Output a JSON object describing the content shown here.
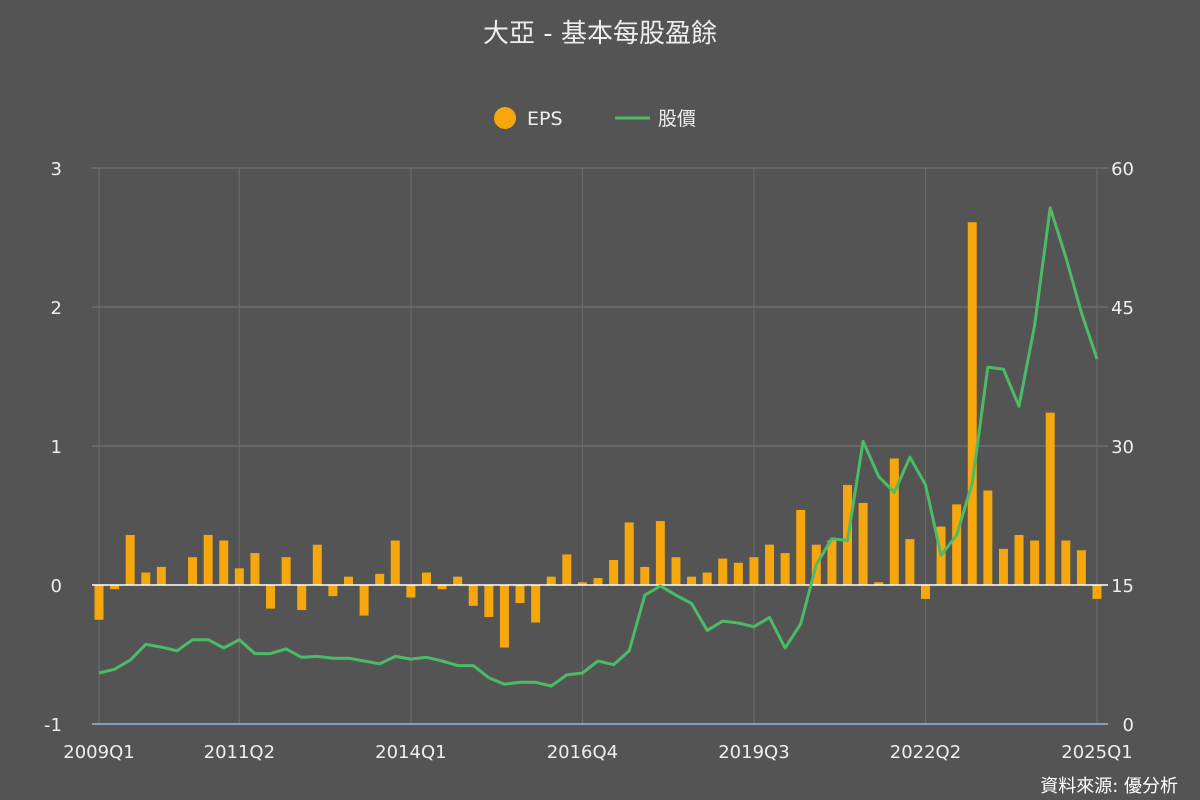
{
  "chart_data": {
    "type": "bar",
    "title": "大亞 - 基本每股盈餘",
    "legend": {
      "placement": "top-center",
      "items": [
        "EPS",
        "股價"
      ]
    },
    "colors": {
      "eps": "#f5a70d",
      "price": "#4cbb66",
      "zero_line": "#ffffff",
      "axis_bottom": "#9ab4d8"
    },
    "x_tick_labels": [
      "2009Q1",
      "2011Q2",
      "2014Q1",
      "2016Q4",
      "2019Q3",
      "2022Q2",
      "2025Q1"
    ],
    "y_left": {
      "min": -1,
      "max": 3,
      "ticks": [
        "-1",
        "0",
        "1",
        "2",
        "3"
      ]
    },
    "y_right": {
      "min": 0,
      "max": 60,
      "ticks": [
        "0",
        "15",
        "30",
        "45",
        "60"
      ]
    },
    "categories": [
      "2009Q1",
      "2009Q2",
      "2009Q3",
      "2009Q4",
      "2010Q1",
      "2010Q2",
      "2010Q3",
      "2010Q4",
      "2011Q1",
      "2011Q2",
      "2011Q3",
      "2011Q4",
      "2012Q1",
      "2012Q2",
      "2012Q3",
      "2012Q4",
      "2013Q1",
      "2013Q2",
      "2013Q3",
      "2013Q4",
      "2014Q1",
      "2014Q2",
      "2014Q3",
      "2014Q4",
      "2015Q1",
      "2015Q2",
      "2015Q3",
      "2015Q4",
      "2016Q1",
      "2016Q2",
      "2016Q3",
      "2016Q4",
      "2017Q1",
      "2017Q2",
      "2017Q3",
      "2017Q4",
      "2018Q1",
      "2018Q2",
      "2018Q3",
      "2018Q4",
      "2019Q1",
      "2019Q2",
      "2019Q3",
      "2019Q4",
      "2020Q1",
      "2020Q2",
      "2020Q3",
      "2020Q4",
      "2021Q1",
      "2021Q2",
      "2021Q3",
      "2021Q4",
      "2022Q1",
      "2022Q2",
      "2022Q3",
      "2022Q4",
      "2023Q1",
      "2023Q2",
      "2023Q3",
      "2023Q4",
      "2024Q1",
      "2024Q2",
      "2024Q3",
      "2024Q4",
      "2025Q1"
    ],
    "series": [
      {
        "name": "EPS",
        "type": "bar",
        "axis": "left",
        "values": [
          -0.25,
          -0.03,
          0.36,
          0.09,
          0.13,
          0.0,
          0.2,
          0.36,
          0.32,
          0.12,
          0.23,
          -0.17,
          0.2,
          -0.18,
          0.29,
          -0.08,
          0.06,
          -0.22,
          0.08,
          0.32,
          -0.09,
          0.09,
          -0.03,
          0.06,
          -0.15,
          -0.23,
          -0.45,
          -0.13,
          -0.27,
          0.06,
          0.22,
          0.02,
          0.05,
          0.18,
          0.45,
          0.13,
          0.46,
          0.2,
          0.06,
          0.09,
          0.19,
          0.16,
          0.2,
          0.29,
          0.23,
          0.54,
          0.29,
          0.32,
          0.72,
          0.59,
          0.02,
          0.91,
          0.33,
          -0.1,
          0.42,
          0.58,
          2.61,
          0.68,
          0.26,
          0.36,
          0.32,
          1.24,
          0.32,
          0.25,
          -0.1
        ]
      },
      {
        "name": "股價",
        "type": "line",
        "axis": "right",
        "values": [
          5.5,
          5.9,
          6.9,
          8.6,
          8.3,
          7.9,
          9.1,
          9.1,
          8.2,
          9.1,
          7.6,
          7.6,
          8.1,
          7.2,
          7.3,
          7.1,
          7.1,
          6.8,
          6.5,
          7.3,
          7.0,
          7.2,
          6.8,
          6.3,
          6.3,
          5.0,
          4.3,
          4.5,
          4.5,
          4.1,
          5.3,
          5.5,
          6.8,
          6.4,
          7.9,
          13.9,
          14.9,
          13.9,
          13.0,
          10.1,
          11.1,
          10.9,
          10.5,
          11.5,
          8.2,
          10.8,
          17.2,
          20.0,
          19.8,
          30.5,
          26.7,
          25.0,
          28.8,
          25.8,
          18.2,
          20.4,
          26.0,
          38.5,
          38.3,
          34.3,
          43.0,
          55.7,
          50.4,
          44.4,
          39.4
        ]
      }
    ],
    "source": "資料來源: 優分析"
  }
}
